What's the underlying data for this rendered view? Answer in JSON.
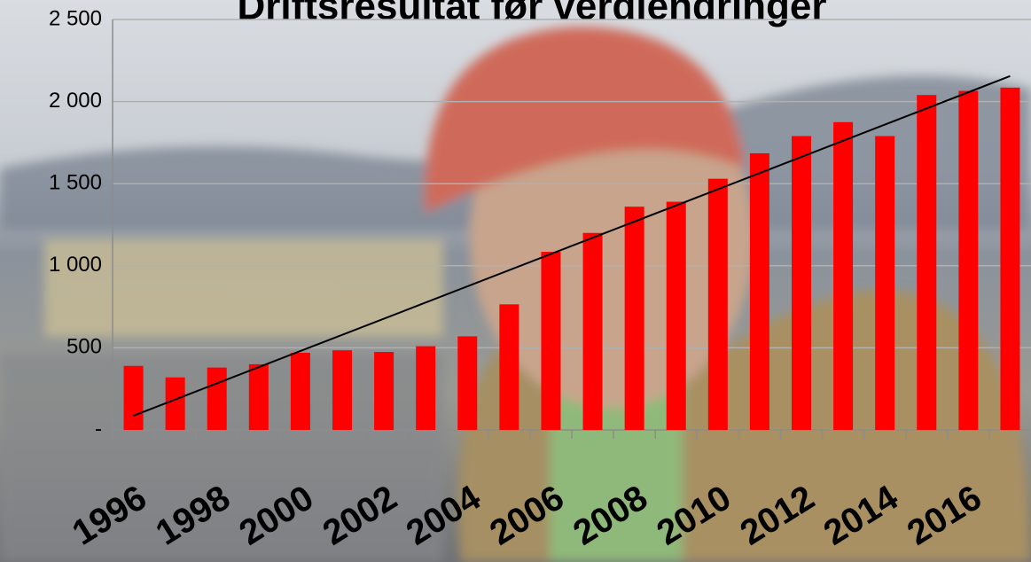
{
  "chart_data": {
    "type": "bar",
    "title": "Driftsresultat før verdiendringer",
    "categories": [
      "1996",
      null,
      "1998",
      null,
      "2000",
      null,
      "2002",
      null,
      "2004",
      null,
      "2006",
      null,
      "2008",
      null,
      "2010",
      null,
      "2012",
      null,
      "2014",
      null,
      "2016",
      null
    ],
    "values": [
      390,
      320,
      380,
      400,
      470,
      485,
      475,
      510,
      570,
      765,
      1085,
      1200,
      1360,
      1390,
      1530,
      1685,
      1790,
      1875,
      1790,
      2040,
      2065,
      2085
    ],
    "color": "#ff0000",
    "ylim": [
      0,
      2500
    ],
    "yticks": [
      {
        "value": 0,
        "label": "-"
      },
      500,
      {
        "value": 1000,
        "label": "1 000"
      },
      {
        "value": 1500,
        "label": "1 500"
      },
      {
        "value": 2000,
        "label": "2 000"
      },
      {
        "value": 2500,
        "label": "2 500"
      }
    ],
    "grid": true,
    "trendline": true
  }
}
